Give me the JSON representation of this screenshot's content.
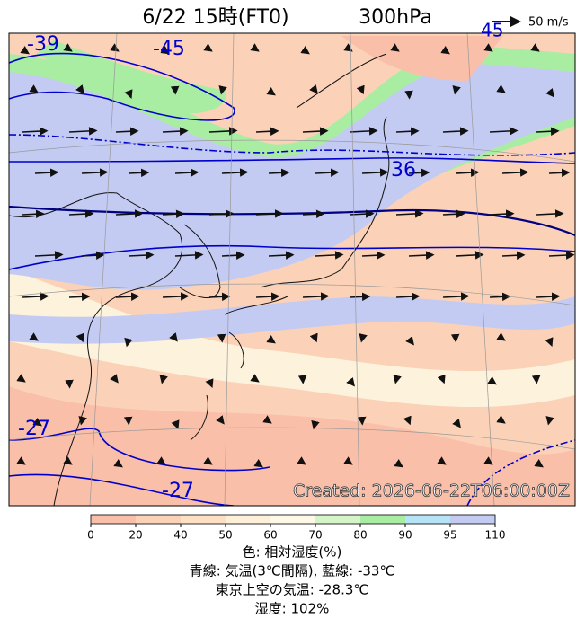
{
  "header": {
    "title": "6/22 15時(FT0)",
    "level": "300hPa",
    "wind_scale": "50 m/s"
  },
  "map": {
    "contour_labels": [
      "-39",
      "-45",
      "36",
      "-27",
      "-27",
      "45"
    ],
    "created": "Created: 2026-06-22T06:00:00Z"
  },
  "colorbar": {
    "ticks": [
      0,
      20,
      40,
      50,
      60,
      70,
      80,
      90,
      95,
      110
    ]
  },
  "caption": {
    "lines": [
      "色: 相対湿度(%)",
      "青線: 気温(3℃間隔), 藍線: -33℃",
      "東京上空の気温: -28.3℃",
      "湿度: 102%"
    ]
  }
}
